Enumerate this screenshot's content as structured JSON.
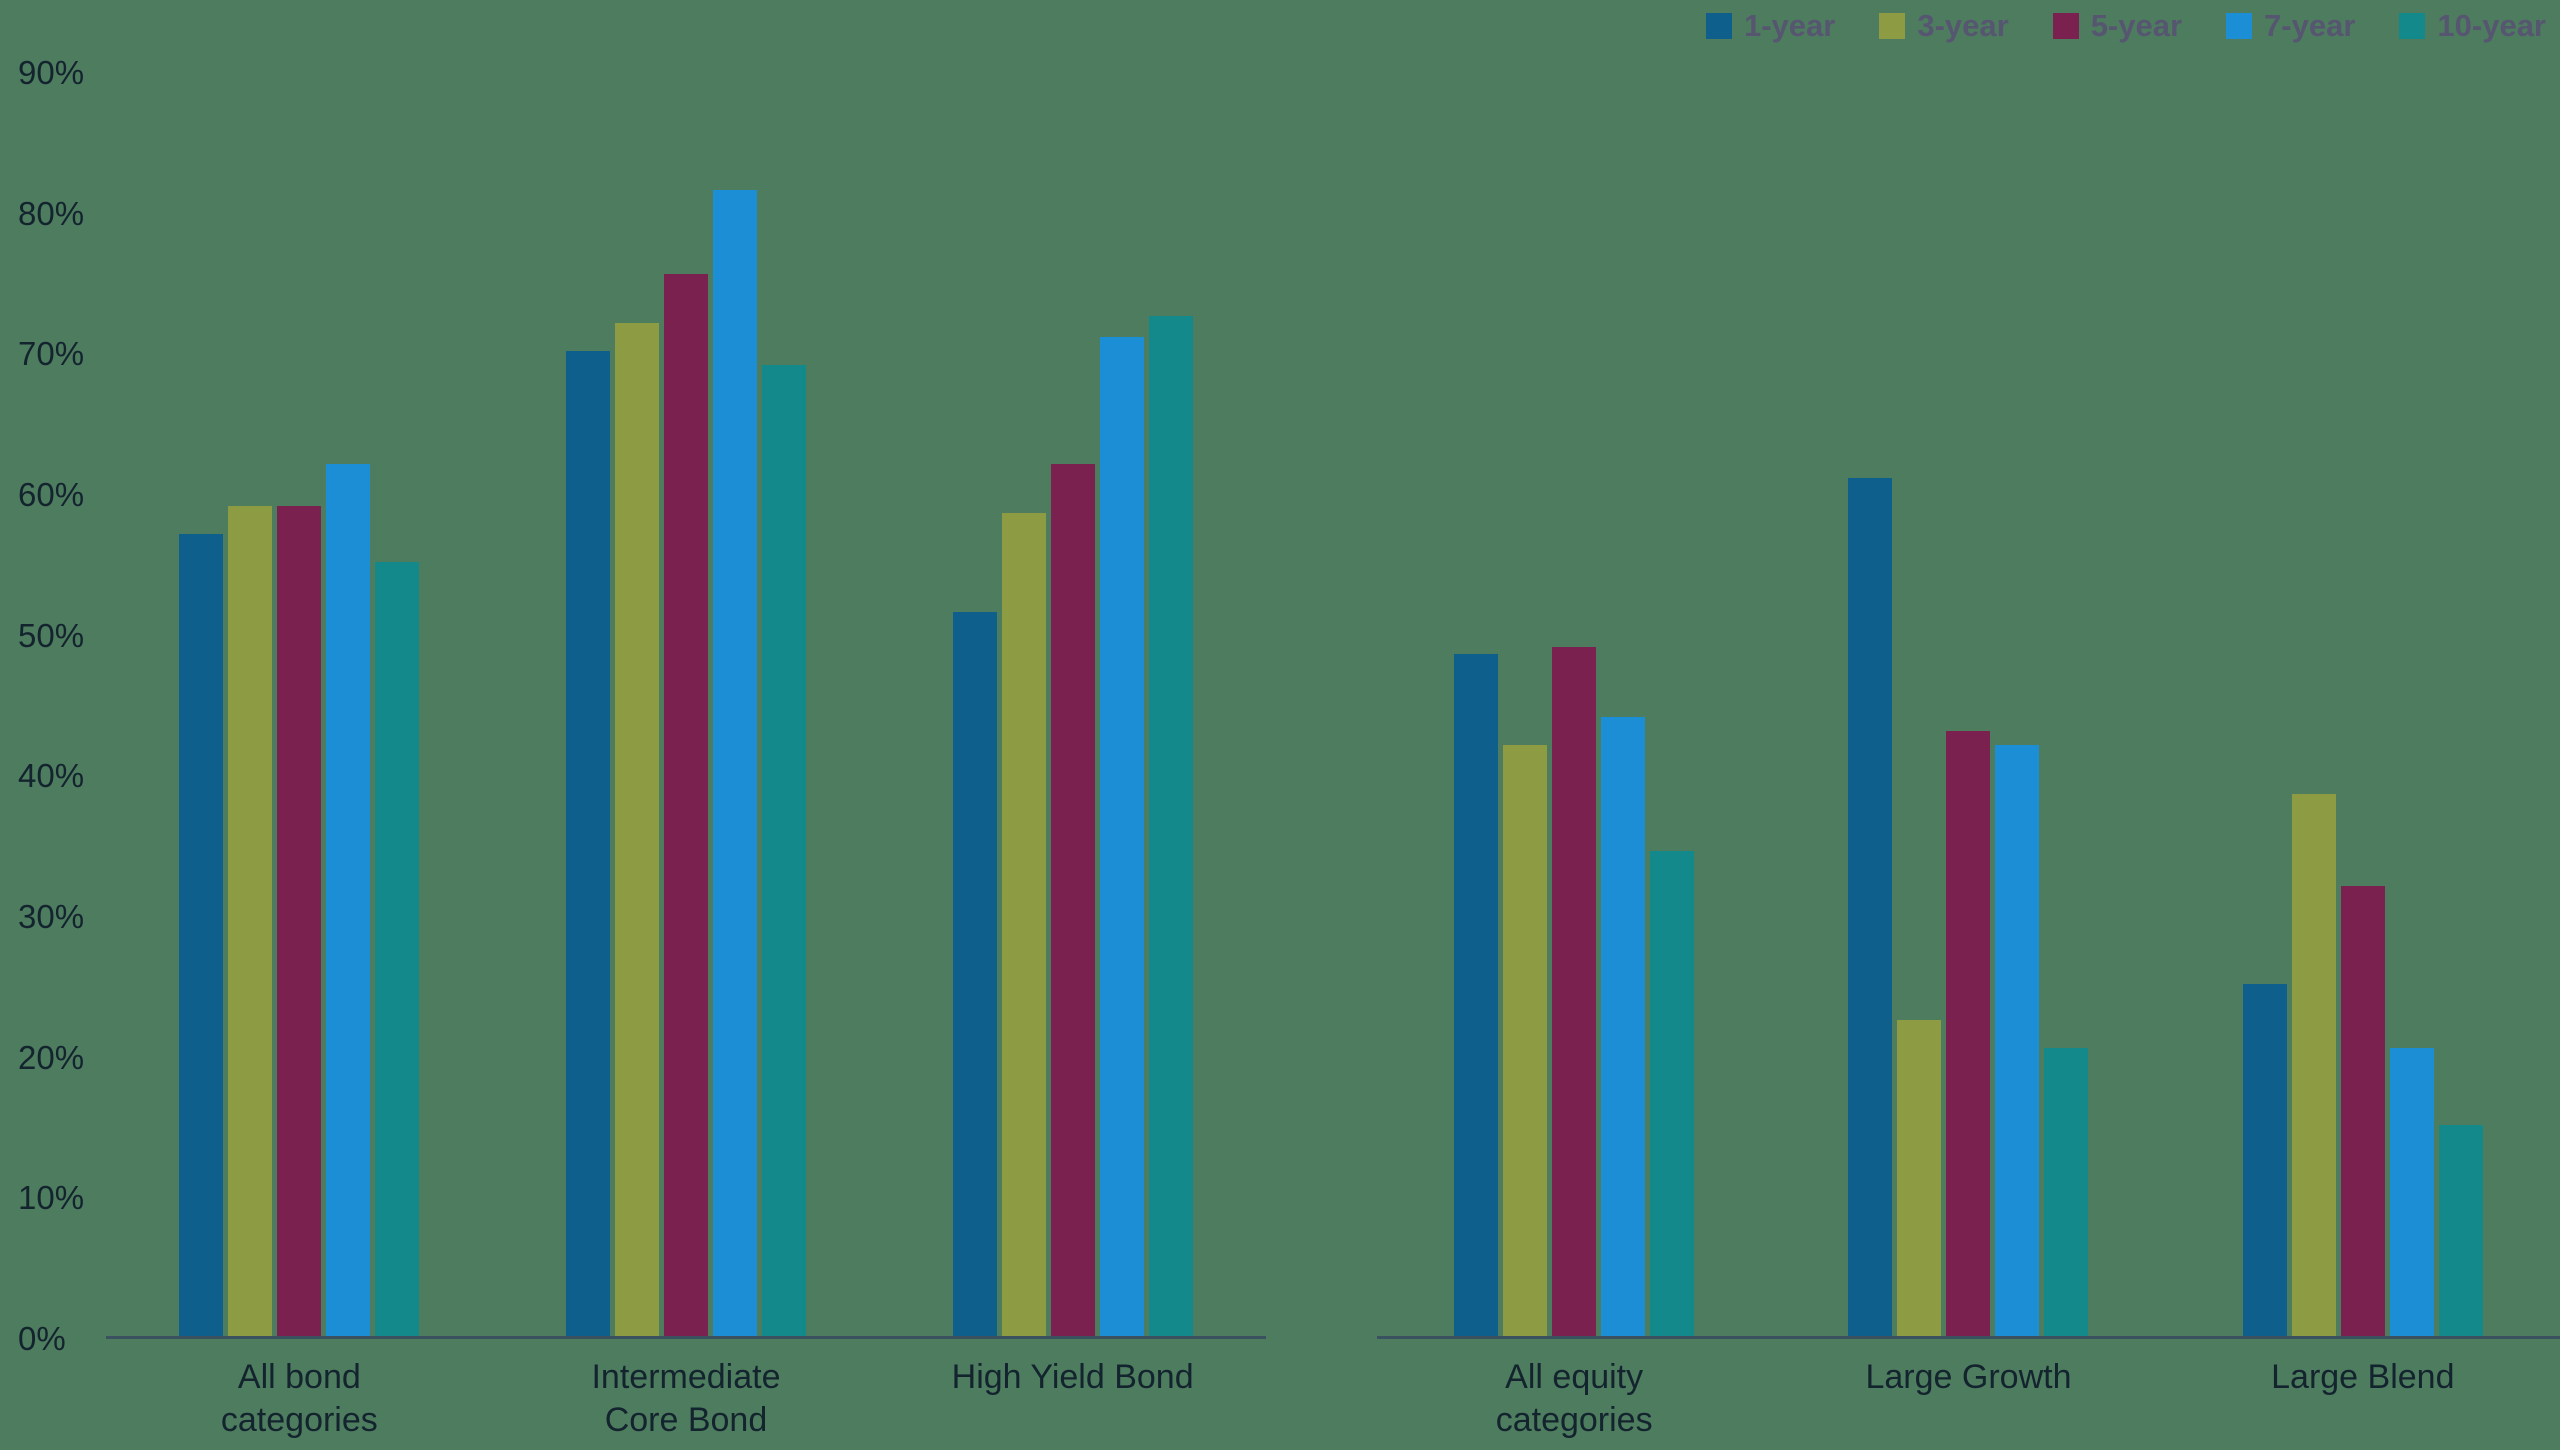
{
  "chart_data": {
    "type": "bar",
    "title": "",
    "xlabel": "",
    "ylabel": "",
    "ylim": [
      0,
      90
    ],
    "grid": false,
    "legend_position": "top-right",
    "background_color": "#4e7c5f",
    "axis_line_color": "#3a525f",
    "tick_label_color": "#13242e",
    "category_label_color": "#13242e",
    "legend_text_color": "#565671",
    "y_ticks": [
      "0%",
      "10%",
      "20%",
      "30%",
      "40%",
      "50%",
      "60%",
      "70%",
      "80%",
      "90%"
    ],
    "categories": [
      "All bond categories",
      "Intermediate Core Bond",
      "High Yield Bond",
      "All equity categories",
      "Large Growth",
      "Large Blend"
    ],
    "panels": [
      [
        0,
        1,
        2
      ],
      [
        3,
        4,
        5
      ]
    ],
    "series": [
      {
        "name": "1-year",
        "color": "#0f5f8c",
        "values": [
          57,
          70,
          51.5,
          48.5,
          61,
          25
        ]
      },
      {
        "name": "3-year",
        "color": "#8d9c43",
        "values": [
          59,
          72,
          58.5,
          42,
          22.5,
          38.5
        ]
      },
      {
        "name": "5-year",
        "color": "#7b2150",
        "values": [
          59,
          75.5,
          62,
          49,
          43,
          32
        ]
      },
      {
        "name": "7-year",
        "color": "#1b8ed6",
        "values": [
          62,
          81.5,
          71,
          44,
          42,
          20.5
        ]
      },
      {
        "name": "10-year",
        "color": "#13898c",
        "values": [
          55,
          69,
          72.5,
          34.5,
          20.5,
          15
        ]
      }
    ]
  }
}
